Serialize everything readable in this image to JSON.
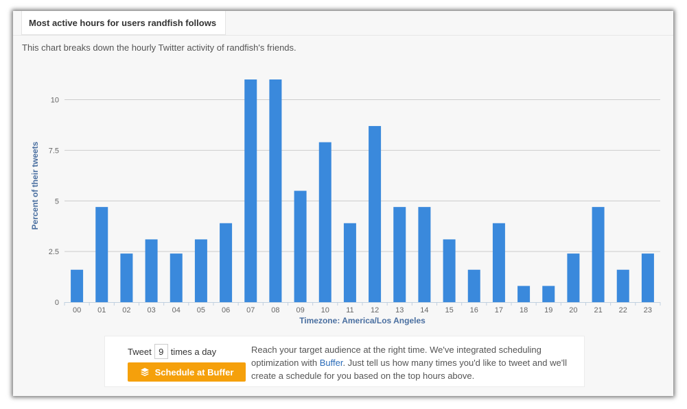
{
  "section": {
    "tab_title": "Most active hours for users randfish follows",
    "description": "This chart breaks down the hourly Twitter activity of randfish's friends."
  },
  "chart_data": {
    "type": "bar",
    "xlabel": "Timezone: America/Los Angeles",
    "ylabel": "Percent of their tweets",
    "categories": [
      "00",
      "01",
      "02",
      "03",
      "04",
      "05",
      "06",
      "07",
      "08",
      "09",
      "10",
      "11",
      "12",
      "13",
      "14",
      "15",
      "16",
      "17",
      "18",
      "19",
      "20",
      "21",
      "22",
      "23"
    ],
    "values": [
      1.6,
      4.7,
      2.4,
      3.1,
      2.4,
      3.1,
      3.9,
      11.0,
      11.0,
      5.5,
      7.9,
      3.9,
      8.7,
      4.7,
      4.7,
      3.1,
      1.6,
      3.9,
      0.8,
      0.8,
      2.4,
      4.7,
      1.6,
      2.4
    ],
    "yticks": [
      0,
      2.5,
      5,
      7.5,
      10
    ],
    "ytick_labels": [
      "0",
      "2.5",
      "5",
      "7.5",
      "10"
    ],
    "ylim": [
      0,
      11
    ],
    "grid": true,
    "legend": "none",
    "colors": {
      "bar": "#3a89dc",
      "axis_label": "#4a6fa0",
      "grid": "#cccccc"
    }
  },
  "buffer": {
    "tweet_prefix": "Tweet",
    "tweet_count": "9",
    "tweet_suffix": "times a day",
    "button_label": "Schedule at Buffer",
    "button_icon": "buffer-stack-icon",
    "button_color": "#f5a00b",
    "text_before": "Reach your target audience at the right time. We've integrated scheduling optimization with ",
    "link_text": "Buffer",
    "text_after": ". Just tell us how many times you'd like to tweet and we'll create a schedule for you based on the top hours above."
  }
}
